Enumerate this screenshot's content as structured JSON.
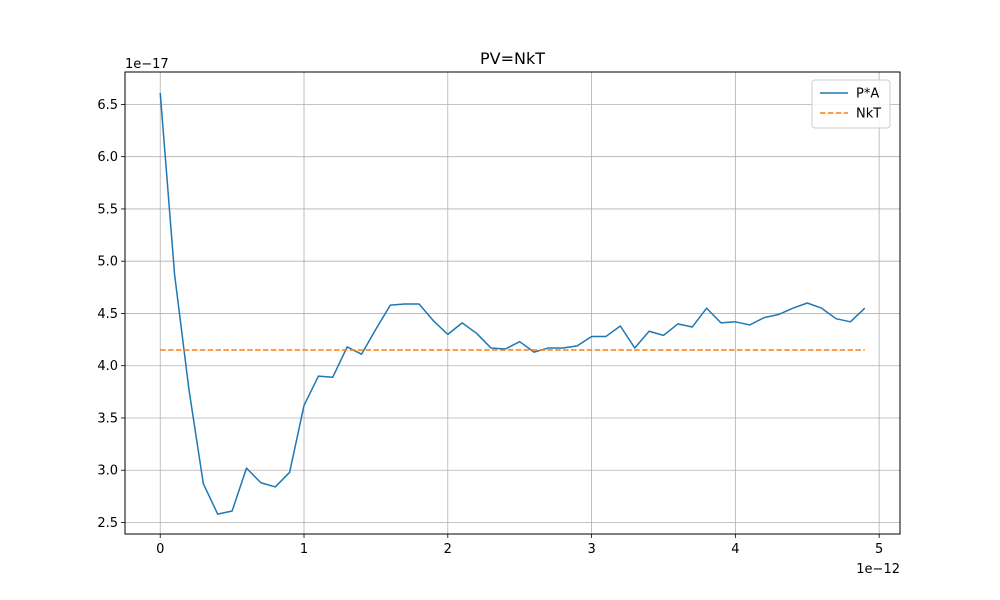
{
  "chart_data": {
    "type": "line",
    "title": "PV=NkT",
    "xlabel": "",
    "ylabel": "",
    "x_offset_label": "1e−12",
    "y_offset_label": "1e−17",
    "xlim": [
      -0.245,
      5.145
    ],
    "ylim": [
      2.39,
      6.81
    ],
    "x_ticks": [
      0,
      1,
      2,
      3,
      4,
      5
    ],
    "x_tick_labels": [
      "0",
      "1",
      "2",
      "3",
      "4",
      "5"
    ],
    "y_ticks": [
      2.5,
      3.0,
      3.5,
      4.0,
      4.5,
      5.0,
      5.5,
      6.0,
      6.5
    ],
    "y_tick_labels": [
      "2.5",
      "3.0",
      "3.5",
      "4.0",
      "4.5",
      "5.0",
      "5.5",
      "6.0",
      "6.5"
    ],
    "grid": true,
    "legend_position": "top-right",
    "x": [
      0.0,
      0.1,
      0.2,
      0.3,
      0.4,
      0.5,
      0.6,
      0.7,
      0.8,
      0.9,
      1.0,
      1.1,
      1.2,
      1.3,
      1.4,
      1.5,
      1.6,
      1.7,
      1.8,
      1.9,
      2.0,
      2.1,
      2.2,
      2.3,
      2.4,
      2.5,
      2.6,
      2.7,
      2.8,
      2.9,
      3.0,
      3.1,
      3.2,
      3.3,
      3.4,
      3.5,
      3.6,
      3.7,
      3.8,
      3.9,
      4.0,
      4.1,
      4.2,
      4.3,
      4.4,
      4.5,
      4.6,
      4.7,
      4.8,
      4.9
    ],
    "series": [
      {
        "name": "P*A",
        "color": "#1f77b4",
        "style": "solid",
        "values": [
          6.61,
          4.87,
          3.77,
          2.87,
          2.58,
          2.61,
          3.02,
          2.88,
          2.84,
          2.98,
          3.62,
          3.9,
          3.89,
          4.18,
          4.11,
          4.35,
          4.58,
          4.59,
          4.59,
          4.43,
          4.3,
          4.41,
          4.31,
          4.17,
          4.16,
          4.23,
          4.13,
          4.17,
          4.17,
          4.19,
          4.28,
          4.28,
          4.38,
          4.17,
          4.33,
          4.29,
          4.4,
          4.37,
          4.55,
          4.41,
          4.42,
          4.39,
          4.46,
          4.49,
          4.55,
          4.6,
          4.55,
          4.45,
          4.42,
          4.55
        ]
      },
      {
        "name": "NkT",
        "color": "#ff7f0e",
        "style": "dashed",
        "values": [
          4.15,
          4.15,
          4.15,
          4.15,
          4.15,
          4.15,
          4.15,
          4.15,
          4.15,
          4.15,
          4.15,
          4.15,
          4.15,
          4.15,
          4.15,
          4.15,
          4.15,
          4.15,
          4.15,
          4.15,
          4.15,
          4.15,
          4.15,
          4.15,
          4.15,
          4.15,
          4.15,
          4.15,
          4.15,
          4.15,
          4.15,
          4.15,
          4.15,
          4.15,
          4.15,
          4.15,
          4.15,
          4.15,
          4.15,
          4.15,
          4.15,
          4.15,
          4.15,
          4.15,
          4.15,
          4.15,
          4.15,
          4.15,
          4.15,
          4.15
        ]
      }
    ]
  }
}
